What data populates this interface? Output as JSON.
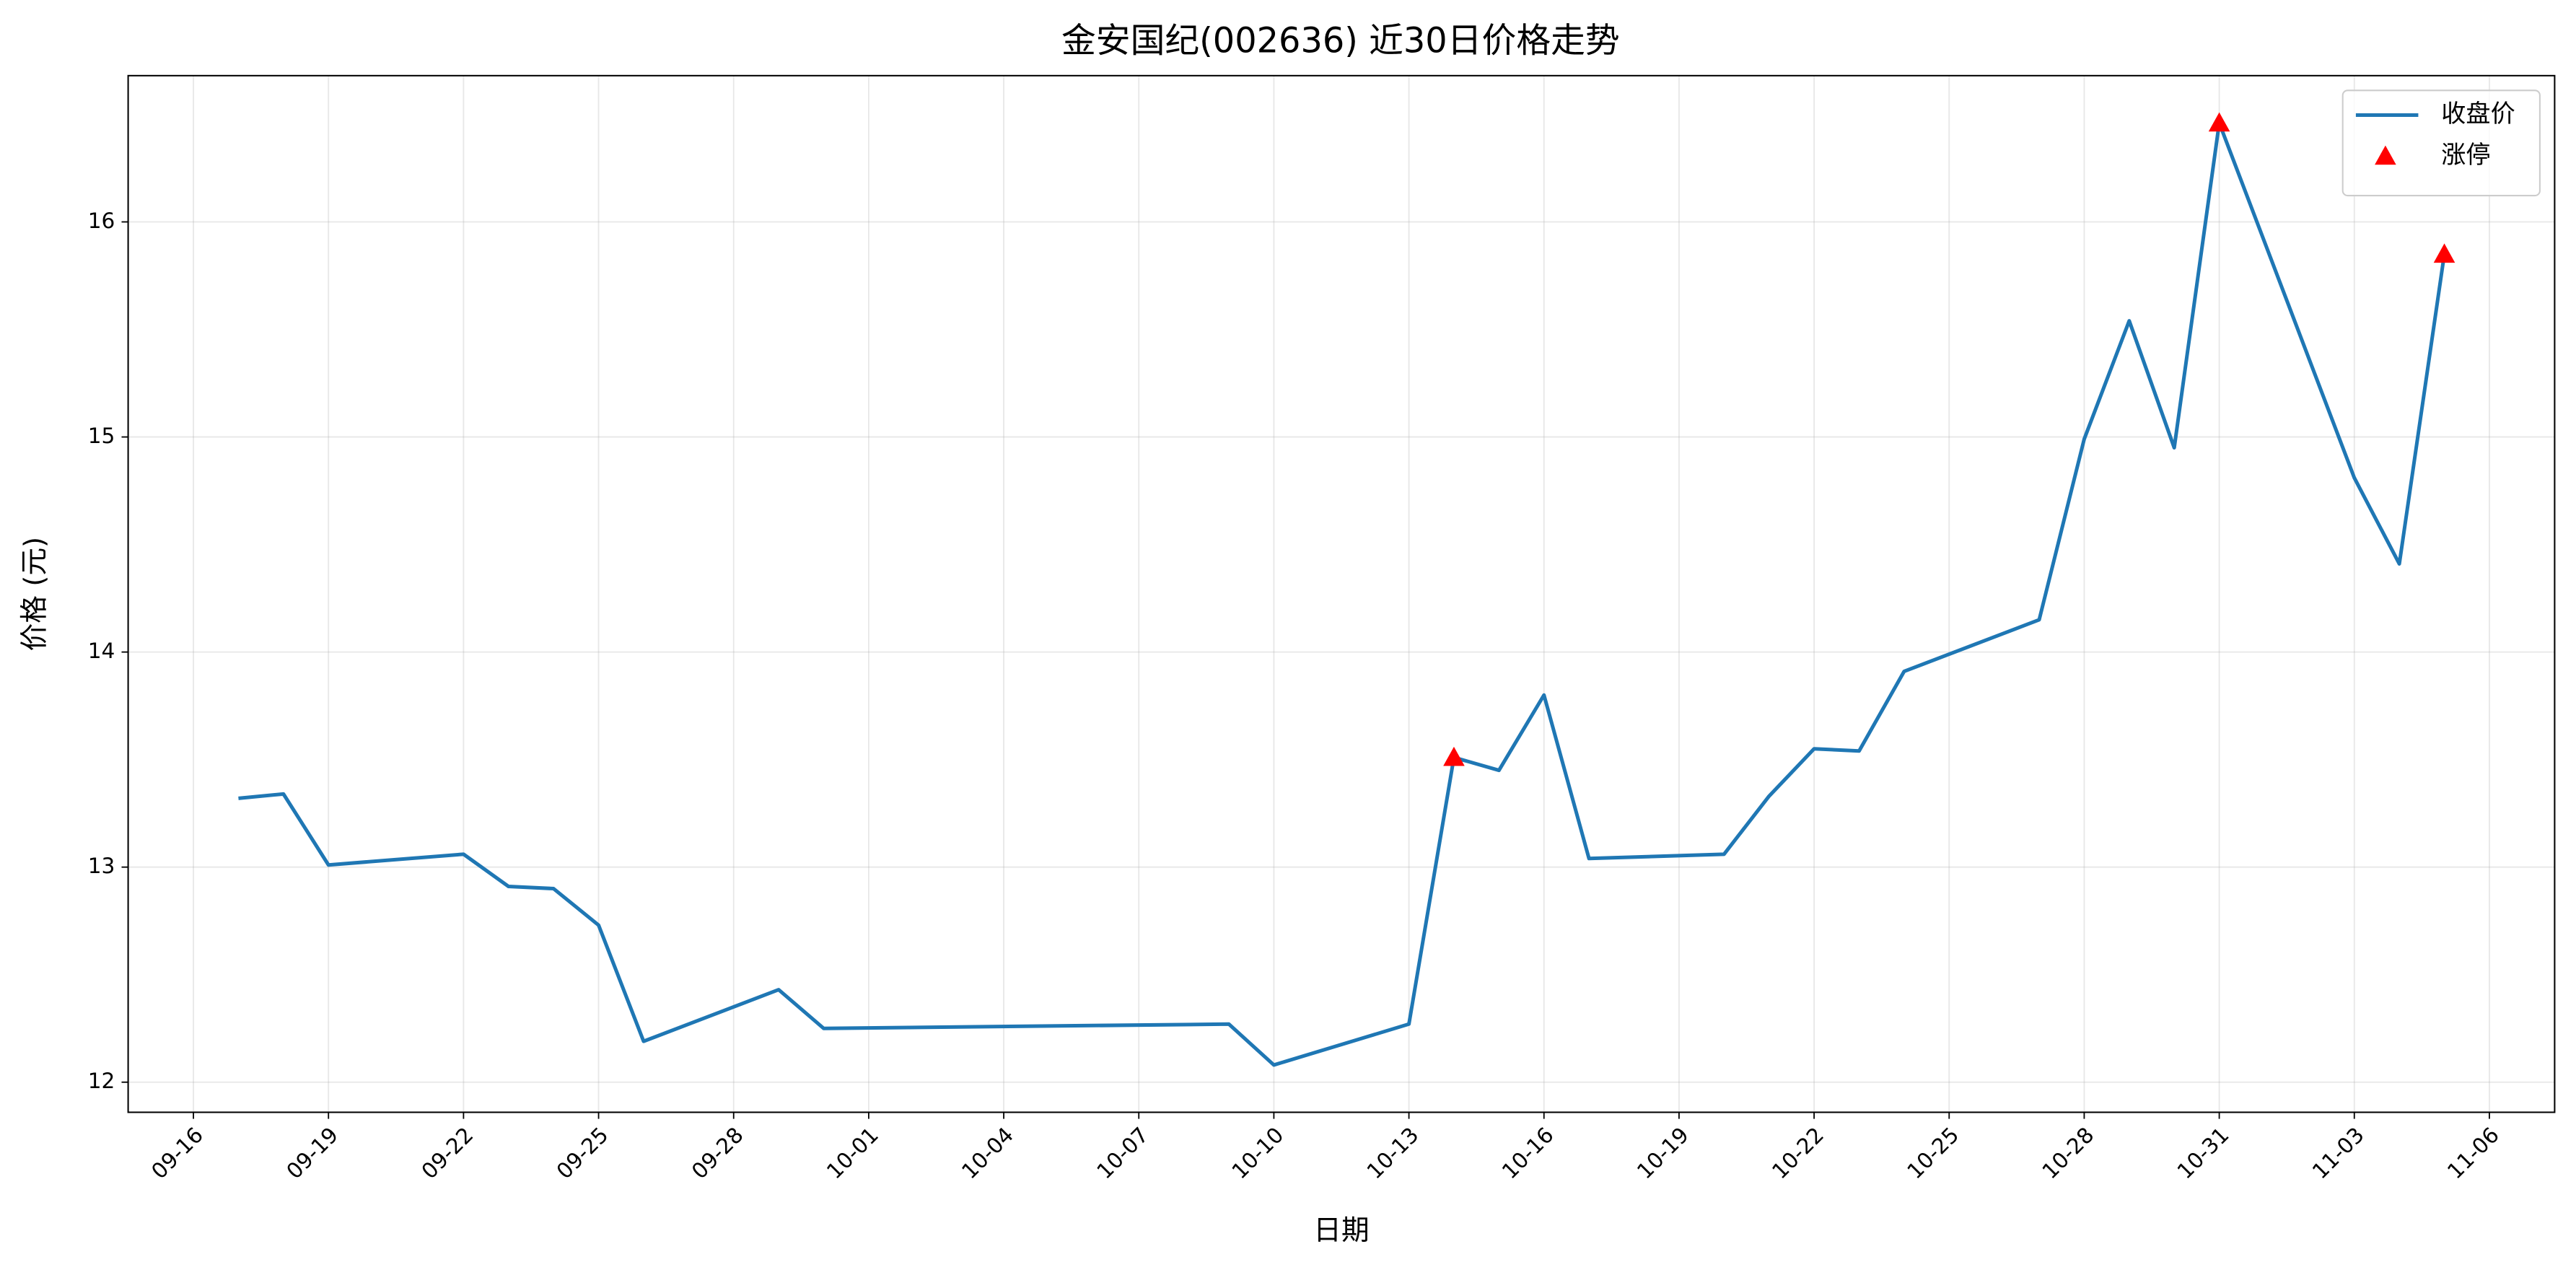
{
  "chart_data": {
    "type": "line",
    "title": "金安国纪(002636) 近30日价格走势",
    "x_label": "日期",
    "y_label": "价格 (元)",
    "series": [
      {
        "name": "收盘价",
        "color": "#1f77b4",
        "x": [
          "09-17",
          "09-18",
          "09-19",
          "09-22",
          "09-23",
          "09-24",
          "09-25",
          "09-26",
          "09-29",
          "09-30",
          "10-09",
          "10-10",
          "10-13",
          "10-14",
          "10-15",
          "10-16",
          "10-17",
          "10-20",
          "10-21",
          "10-22",
          "10-23",
          "10-24",
          "10-27",
          "10-28",
          "10-29",
          "10-30",
          "10-31",
          "11-03",
          "11-04",
          "11-05"
        ],
        "values": [
          13.32,
          13.34,
          13.01,
          13.06,
          12.91,
          12.9,
          12.73,
          12.19,
          12.43,
          12.25,
          12.27,
          12.08,
          12.27,
          13.51,
          13.45,
          13.8,
          13.04,
          13.06,
          13.33,
          13.55,
          13.54,
          13.91,
          14.15,
          14.99,
          15.54,
          14.95,
          16.46,
          14.81,
          14.41,
          15.85
        ]
      },
      {
        "name": "涨停",
        "type": "scatter",
        "marker": "triangle",
        "color": "#ff0000",
        "x": [
          "10-14",
          "10-31",
          "11-05"
        ],
        "values": [
          13.51,
          16.46,
          15.85
        ]
      }
    ],
    "xticks": [
      "09-16",
      "09-19",
      "09-22",
      "09-25",
      "09-28",
      "10-01",
      "10-04",
      "10-07",
      "10-10",
      "10-13",
      "10-16",
      "10-19",
      "10-22",
      "10-25",
      "10-28",
      "10-31",
      "11-03",
      "11-06"
    ],
    "ylim": [
      11.86,
      16.68
    ],
    "yticks": [
      12,
      13,
      14,
      15,
      16
    ],
    "grid": true,
    "legend": "upper right"
  }
}
